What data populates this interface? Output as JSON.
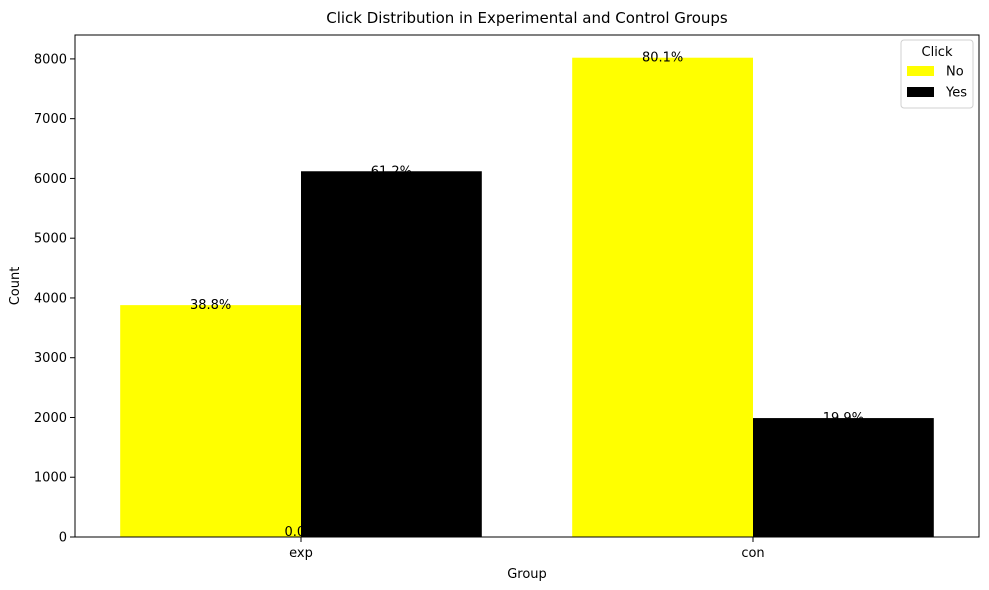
{
  "chart_data": {
    "type": "bar",
    "title": "Click Distribution in Experimental and Control Groups",
    "xlabel": "Group",
    "ylabel": "Count",
    "categories": [
      "exp",
      "con"
    ],
    "ylim": [
      0,
      8400
    ],
    "yticks": [
      0,
      1000,
      2000,
      3000,
      4000,
      5000,
      6000,
      7000,
      8000
    ],
    "grid": false,
    "legend": {
      "title": "Click",
      "placement": "top-right"
    },
    "series": [
      {
        "name": "No",
        "color": "#ffff00",
        "values": [
          3880,
          8020
        ],
        "labels": [
          "38.8%",
          "80.1%"
        ]
      },
      {
        "name": "Yes",
        "color": "#000000",
        "values": [
          6120,
          1990
        ],
        "labels": [
          "61.2%",
          "19.9%"
        ]
      }
    ],
    "annotations": [
      {
        "text": "0.0%",
        "category": "exp",
        "y": 0
      }
    ]
  }
}
